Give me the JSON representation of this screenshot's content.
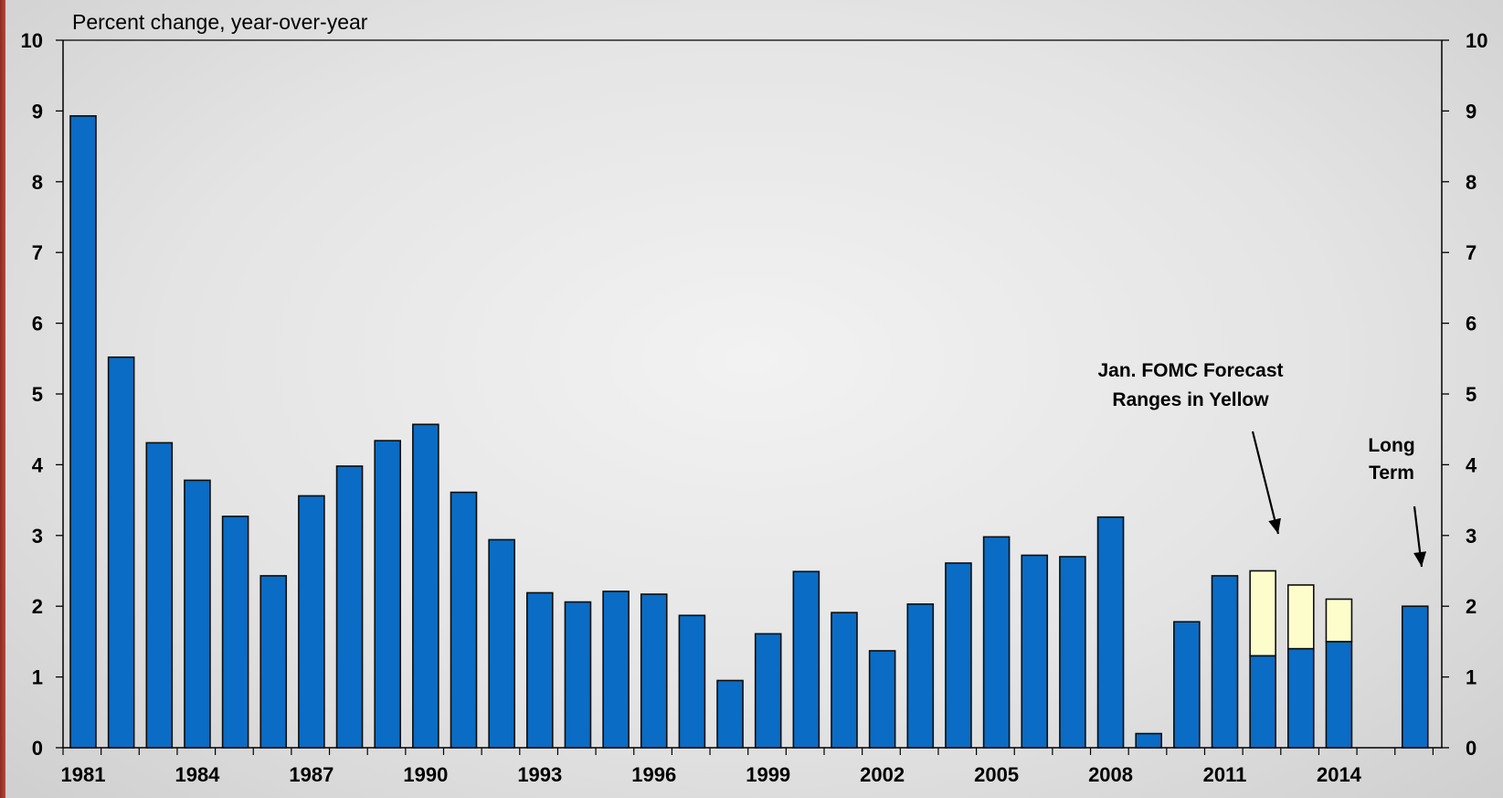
{
  "chart_data": {
    "type": "bar",
    "ylabel": "Percent change, year-over-year",
    "ylim": [
      0,
      10
    ],
    "yticks": [
      "0",
      "1",
      "2",
      "3",
      "4",
      "5",
      "6",
      "7",
      "8",
      "9",
      "10"
    ],
    "xticks": [
      "1981",
      "1984",
      "1987",
      "1990",
      "1993",
      "1996",
      "1999",
      "2002",
      "2005",
      "2008",
      "2011",
      "2014"
    ],
    "categories": [
      "1981",
      "1982",
      "1983",
      "1984",
      "1985",
      "1986",
      "1987",
      "1988",
      "1989",
      "1990",
      "1991",
      "1992",
      "1993",
      "1994",
      "1995",
      "1996",
      "1997",
      "1998",
      "1999",
      "2000",
      "2001",
      "2002",
      "2003",
      "2004",
      "2005",
      "2006",
      "2007",
      "2008",
      "2009",
      "2010",
      "2011",
      "2012",
      "2013",
      "2014",
      "",
      "Long Term"
    ],
    "series": [
      {
        "values": [
          8.93,
          5.52,
          4.31,
          3.78,
          3.27,
          2.43,
          3.56,
          3.98,
          4.34,
          4.57,
          3.61,
          2.94,
          2.19,
          2.06,
          2.21,
          2.17,
          1.87,
          0.95,
          1.61,
          2.49,
          1.91,
          1.37,
          2.03,
          2.61,
          2.98,
          2.72,
          2.7,
          3.26,
          0.2,
          1.78,
          2.43,
          1.3,
          1.4,
          1.5,
          null,
          2.0
        ]
      }
    ],
    "forecast_ranges": [
      {
        "category": "2012",
        "low": 1.3,
        "high": 2.5
      },
      {
        "category": "2013",
        "low": 1.4,
        "high": 2.3
      },
      {
        "category": "2014",
        "low": 1.5,
        "high": 2.1
      }
    ],
    "annotations": [
      {
        "lines": [
          "Jan. FOMC Forecast",
          "Ranges in Yellow"
        ]
      },
      {
        "lines": [
          "Long",
          "Term"
        ]
      }
    ],
    "colors": {
      "bar": "#0a6cc4",
      "bar_stroke": "#0d0d0d",
      "forecast": "#fdfdcc"
    }
  }
}
